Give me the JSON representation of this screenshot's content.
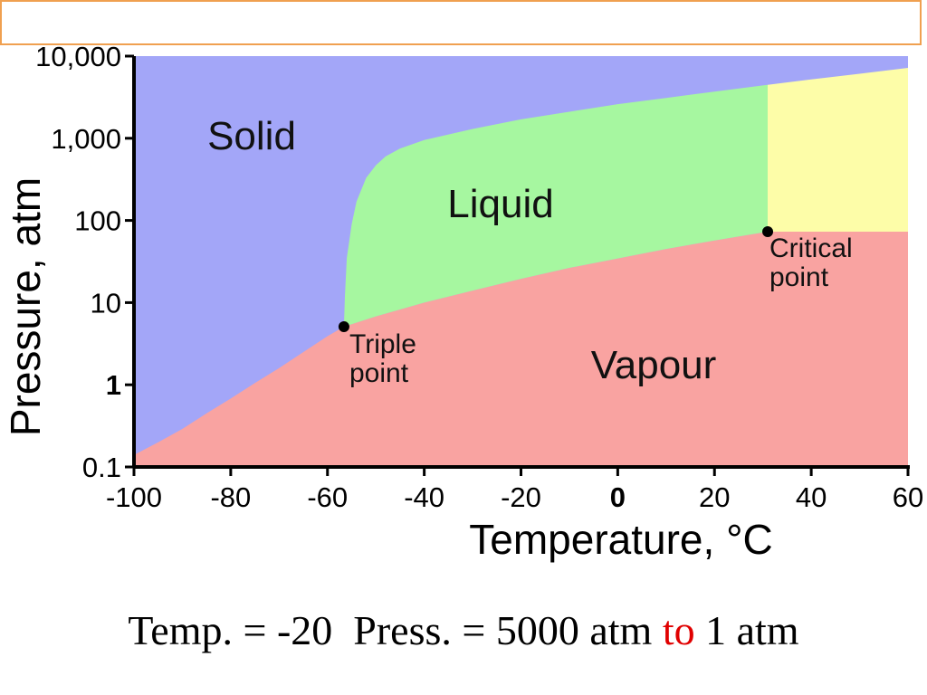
{
  "slide": {
    "caption": {
      "part1": "Temp. = -20  Press. = 5000 atm ",
      "part2": "to",
      "part3": " 1 atm",
      "highlight_color": "#e00000"
    }
  },
  "chart_data": {
    "type": "area",
    "title": "",
    "xlabel": "Temperature, °C",
    "ylabel": "Pressure, atm",
    "xlim": [
      -100,
      60
    ],
    "ylim": [
      0.1,
      10000
    ],
    "y_scale": "log",
    "grid": false,
    "x_ticks": [
      -100,
      -80,
      -60,
      -40,
      -20,
      0,
      20,
      40,
      60
    ],
    "x_tick_labels": [
      "-100",
      "-80",
      "-60",
      "-40",
      "-20",
      "0",
      "20",
      "40",
      "60"
    ],
    "y_ticks": [
      0.1,
      1,
      10,
      100,
      1000,
      10000
    ],
    "y_tick_labels": [
      "0.1",
      "1",
      "10",
      "100",
      "1,000",
      "10,000"
    ],
    "regions": [
      {
        "name": "Solid",
        "label": "Solid",
        "color": "#a3a6f8"
      },
      {
        "name": "Liquid",
        "label": "Liquid",
        "color": "#a6f7a0"
      },
      {
        "name": "Vapour",
        "label": "Vapour",
        "color": "#f9a3a1"
      },
      {
        "name": "Supercritical",
        "label": "",
        "color": "#fdfda8"
      }
    ],
    "curves": {
      "sublimation": {
        "x": [
          -100,
          -95,
          -90,
          -85,
          -80,
          -75,
          -70,
          -65,
          -60,
          -56.6
        ],
        "y": [
          0.14,
          0.2,
          0.29,
          0.45,
          0.68,
          1.05,
          1.6,
          2.5,
          3.9,
          5.1
        ]
      },
      "melting": {
        "x": [
          -56.6,
          -56.4,
          -56,
          -55,
          -54,
          -52,
          -50,
          -48,
          -45,
          -40,
          -30,
          -20,
          -10,
          0,
          10,
          20,
          30,
          40,
          50,
          60
        ],
        "y": [
          5.1,
          12,
          35,
          90,
          170,
          330,
          470,
          600,
          750,
          950,
          1300,
          1700,
          2100,
          2600,
          3100,
          3700,
          4400,
          5200,
          6100,
          7200
        ]
      },
      "boiling": {
        "x": [
          -56.6,
          -50,
          -40,
          -30,
          -20,
          -10,
          0,
          10,
          20,
          31
        ],
        "y": [
          5.1,
          6.8,
          10,
          14,
          19.5,
          26.5,
          34.5,
          45,
          57,
          73
        ]
      }
    },
    "points": [
      {
        "name": "triple-point",
        "label": [
          "Triple",
          "point"
        ],
        "x": -56.6,
        "y": 5.1
      },
      {
        "name": "critical-point",
        "label": [
          "Critical",
          "point"
        ],
        "x": 31,
        "y": 73
      }
    ],
    "critical_temperature": 31,
    "critical_pressure": 73
  }
}
